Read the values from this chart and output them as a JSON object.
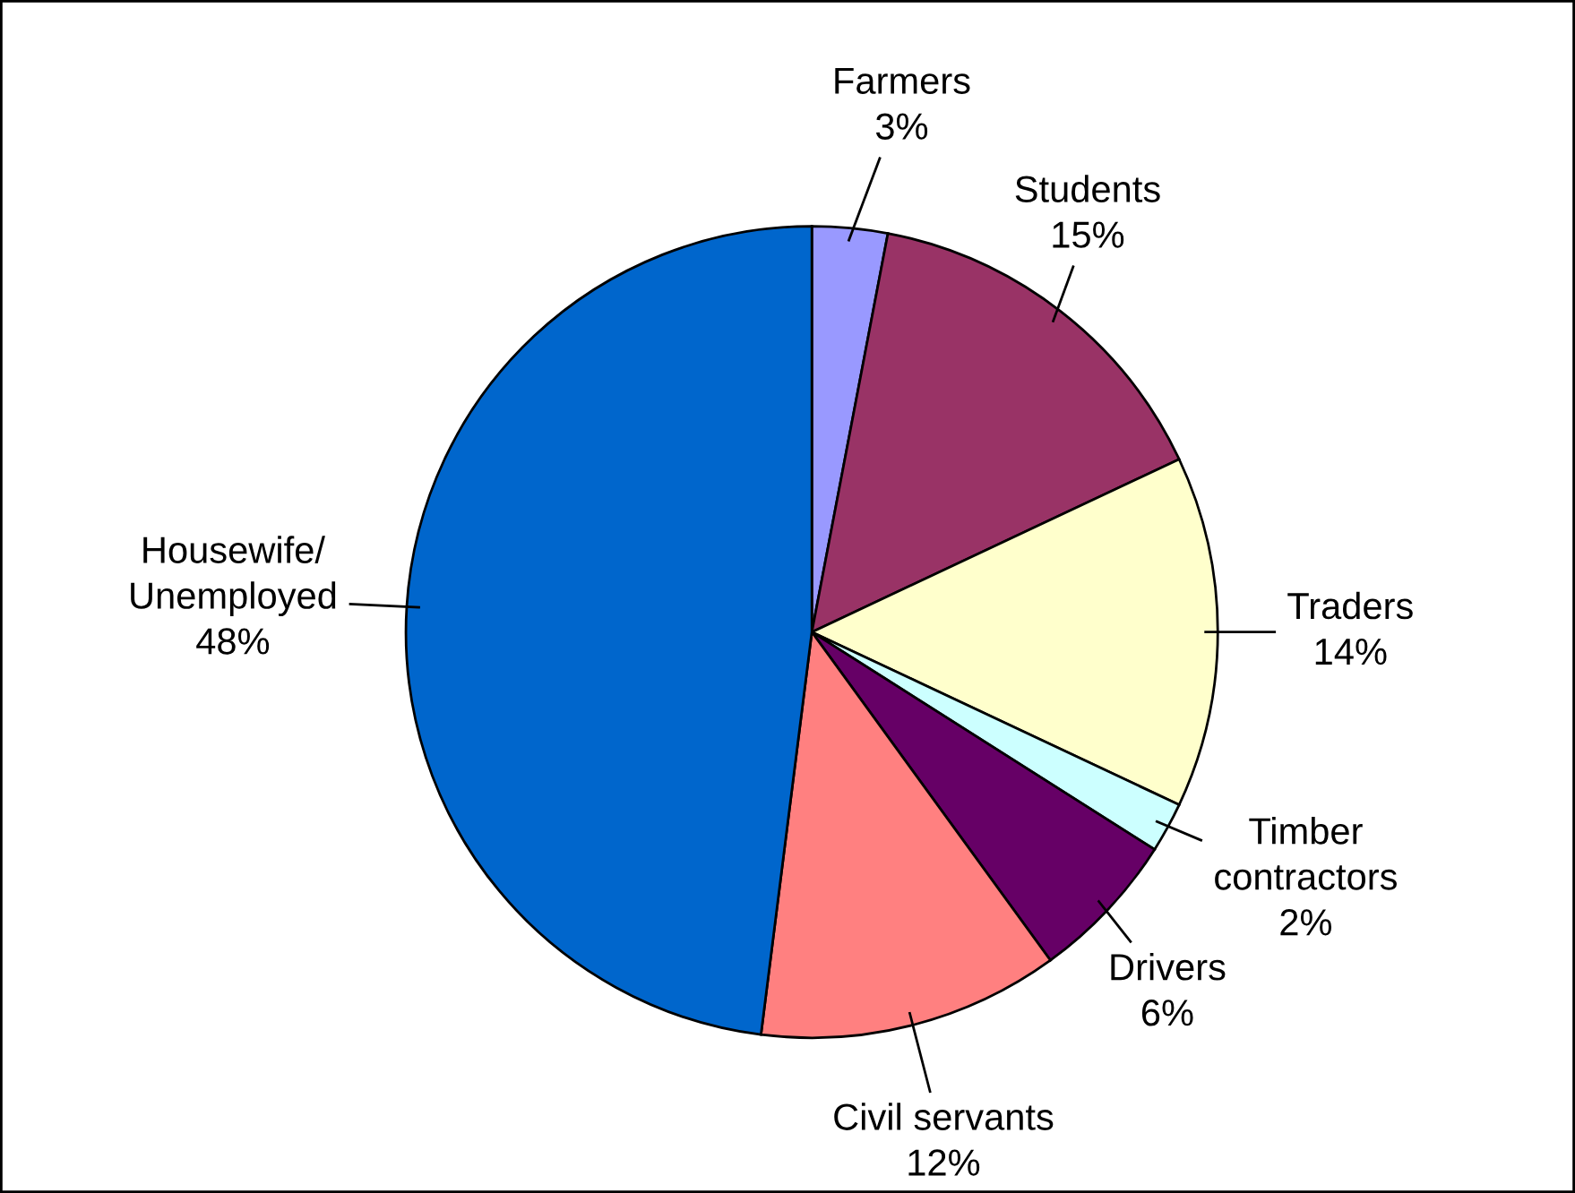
{
  "chart_data": {
    "type": "pie",
    "categories": [
      "Farmers",
      "Students",
      "Traders",
      "Timber\ncontractors",
      "Drivers",
      "Civil servants",
      "Housewife/\nUnemployed"
    ],
    "values": [
      3,
      15,
      14,
      2,
      6,
      12,
      48
    ],
    "value_labels": [
      "3%",
      "15%",
      "14%",
      "2%",
      "6%",
      "12%",
      "48%"
    ],
    "colors": [
      "#9999ff",
      "#993366",
      "#ffffcc",
      "#ccffff",
      "#660066",
      "#ff8080",
      "#0066cc"
    ],
    "legend": false
  }
}
